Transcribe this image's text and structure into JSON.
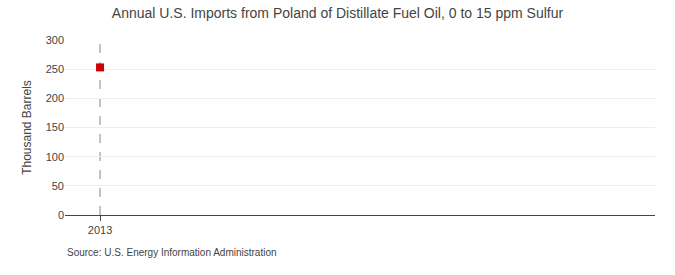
{
  "chart_data": {
    "type": "scatter",
    "title": "Annual U.S. Imports from Poland of Distillate Fuel Oil, 0 to 15 ppm Sulfur",
    "ylabel": "Thousand Barrels",
    "source": "Source: U.S. Energy Information Administration",
    "x": [
      2013
    ],
    "values": [
      253
    ],
    "color": "#cc0000",
    "marker": "square",
    "xlim": [
      2012.4,
      2022.5
    ],
    "xticks": [
      2013
    ],
    "ylim": [
      0,
      300
    ],
    "yticks": [
      0,
      50,
      100,
      150,
      200,
      250,
      300
    ],
    "grid": true
  }
}
